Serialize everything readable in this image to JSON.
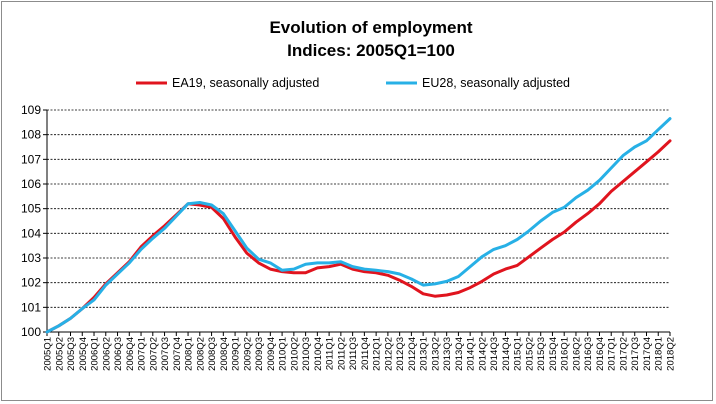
{
  "chart_data": {
    "type": "line",
    "title_lines": [
      "Evolution of employment",
      "Indices: 2005Q1=100"
    ],
    "xlabel": "",
    "ylabel": "",
    "ylim": [
      100,
      109
    ],
    "yticks": [
      100,
      101,
      102,
      103,
      104,
      105,
      106,
      107,
      108,
      109
    ],
    "grid": "horizontal",
    "legend_position": "top",
    "x": [
      "2005Q1",
      "2005Q2",
      "2005Q3",
      "2005Q4",
      "2006Q1",
      "2006Q2",
      "2006Q3",
      "2006Q4",
      "2007Q1",
      "2007Q2",
      "2007Q3",
      "2007Q4",
      "2008Q1",
      "2008Q2",
      "2008Q3",
      "2008Q4",
      "2009Q1",
      "2009Q2",
      "2009Q3",
      "2009Q4",
      "2010Q1",
      "2010Q2",
      "2010Q3",
      "2010Q4",
      "2011Q1",
      "2011Q2",
      "2011Q3",
      "2011Q4",
      "2012Q1",
      "2012Q2",
      "2012Q3",
      "2012Q4",
      "2013Q1",
      "2013Q2",
      "2013Q3",
      "2013Q4",
      "2014Q1",
      "2014Q2",
      "2014Q3",
      "2014Q4",
      "2015Q1",
      "2015Q2",
      "2015Q3",
      "2015Q4",
      "2016Q1",
      "2016Q2",
      "2016Q3",
      "2016Q4",
      "2017Q1",
      "2017Q2",
      "2017Q3",
      "2017Q4",
      "2018Q1",
      "2018Q2"
    ],
    "series": [
      {
        "name": "EA19, seasonally adjusted",
        "color": "#e0141e",
        "values": [
          100.0,
          100.25,
          100.55,
          100.95,
          101.4,
          101.95,
          102.4,
          102.85,
          103.45,
          103.9,
          104.3,
          104.75,
          105.2,
          105.15,
          105.05,
          104.6,
          103.85,
          103.2,
          102.8,
          102.55,
          102.45,
          102.4,
          102.4,
          102.6,
          102.65,
          102.75,
          102.55,
          102.45,
          102.4,
          102.3,
          102.1,
          101.85,
          101.55,
          101.45,
          101.5,
          101.6,
          101.8,
          102.05,
          102.35,
          102.55,
          102.7,
          103.05,
          103.4,
          103.75,
          104.05,
          104.45,
          104.8,
          105.2,
          105.7,
          106.1,
          106.5,
          106.9,
          107.3,
          107.75
        ]
      },
      {
        "name": "EU28, seasonally adjusted",
        "color": "#27b0e6",
        "values": [
          100.0,
          100.25,
          100.55,
          100.95,
          101.3,
          101.9,
          102.35,
          102.8,
          103.35,
          103.8,
          104.2,
          104.7,
          105.2,
          105.25,
          105.15,
          104.8,
          104.1,
          103.4,
          102.95,
          102.8,
          102.5,
          102.55,
          102.75,
          102.8,
          102.8,
          102.85,
          102.65,
          102.55,
          102.5,
          102.45,
          102.35,
          102.15,
          101.9,
          101.95,
          102.05,
          102.25,
          102.65,
          103.05,
          103.35,
          103.5,
          103.75,
          104.1,
          104.5,
          104.85,
          105.05,
          105.45,
          105.75,
          106.15,
          106.65,
          107.15,
          107.5,
          107.75,
          108.2,
          108.65
        ]
      }
    ]
  }
}
